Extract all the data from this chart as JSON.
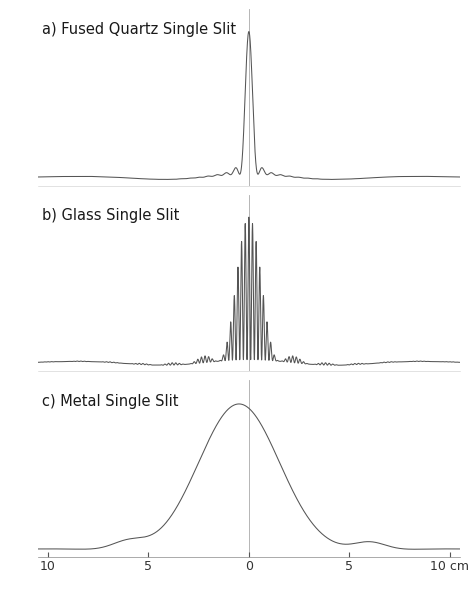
{
  "title_a": "a) Fused Quartz Single Slit",
  "title_b": "b) Glass Single Slit",
  "title_c": "c) Metal Single Slit",
  "xlim": [
    -10.5,
    10.5
  ],
  "background_color": "#ffffff",
  "line_color": "#555555",
  "center_line_color": "#aaaaaa",
  "tick_labels": [
    "10",
    "5",
    "0",
    "5",
    "10 cm"
  ],
  "title_fontsize": 10.5,
  "label_fontsize": 9,
  "figsize": [
    4.74,
    6.02
  ],
  "dpi": 100
}
